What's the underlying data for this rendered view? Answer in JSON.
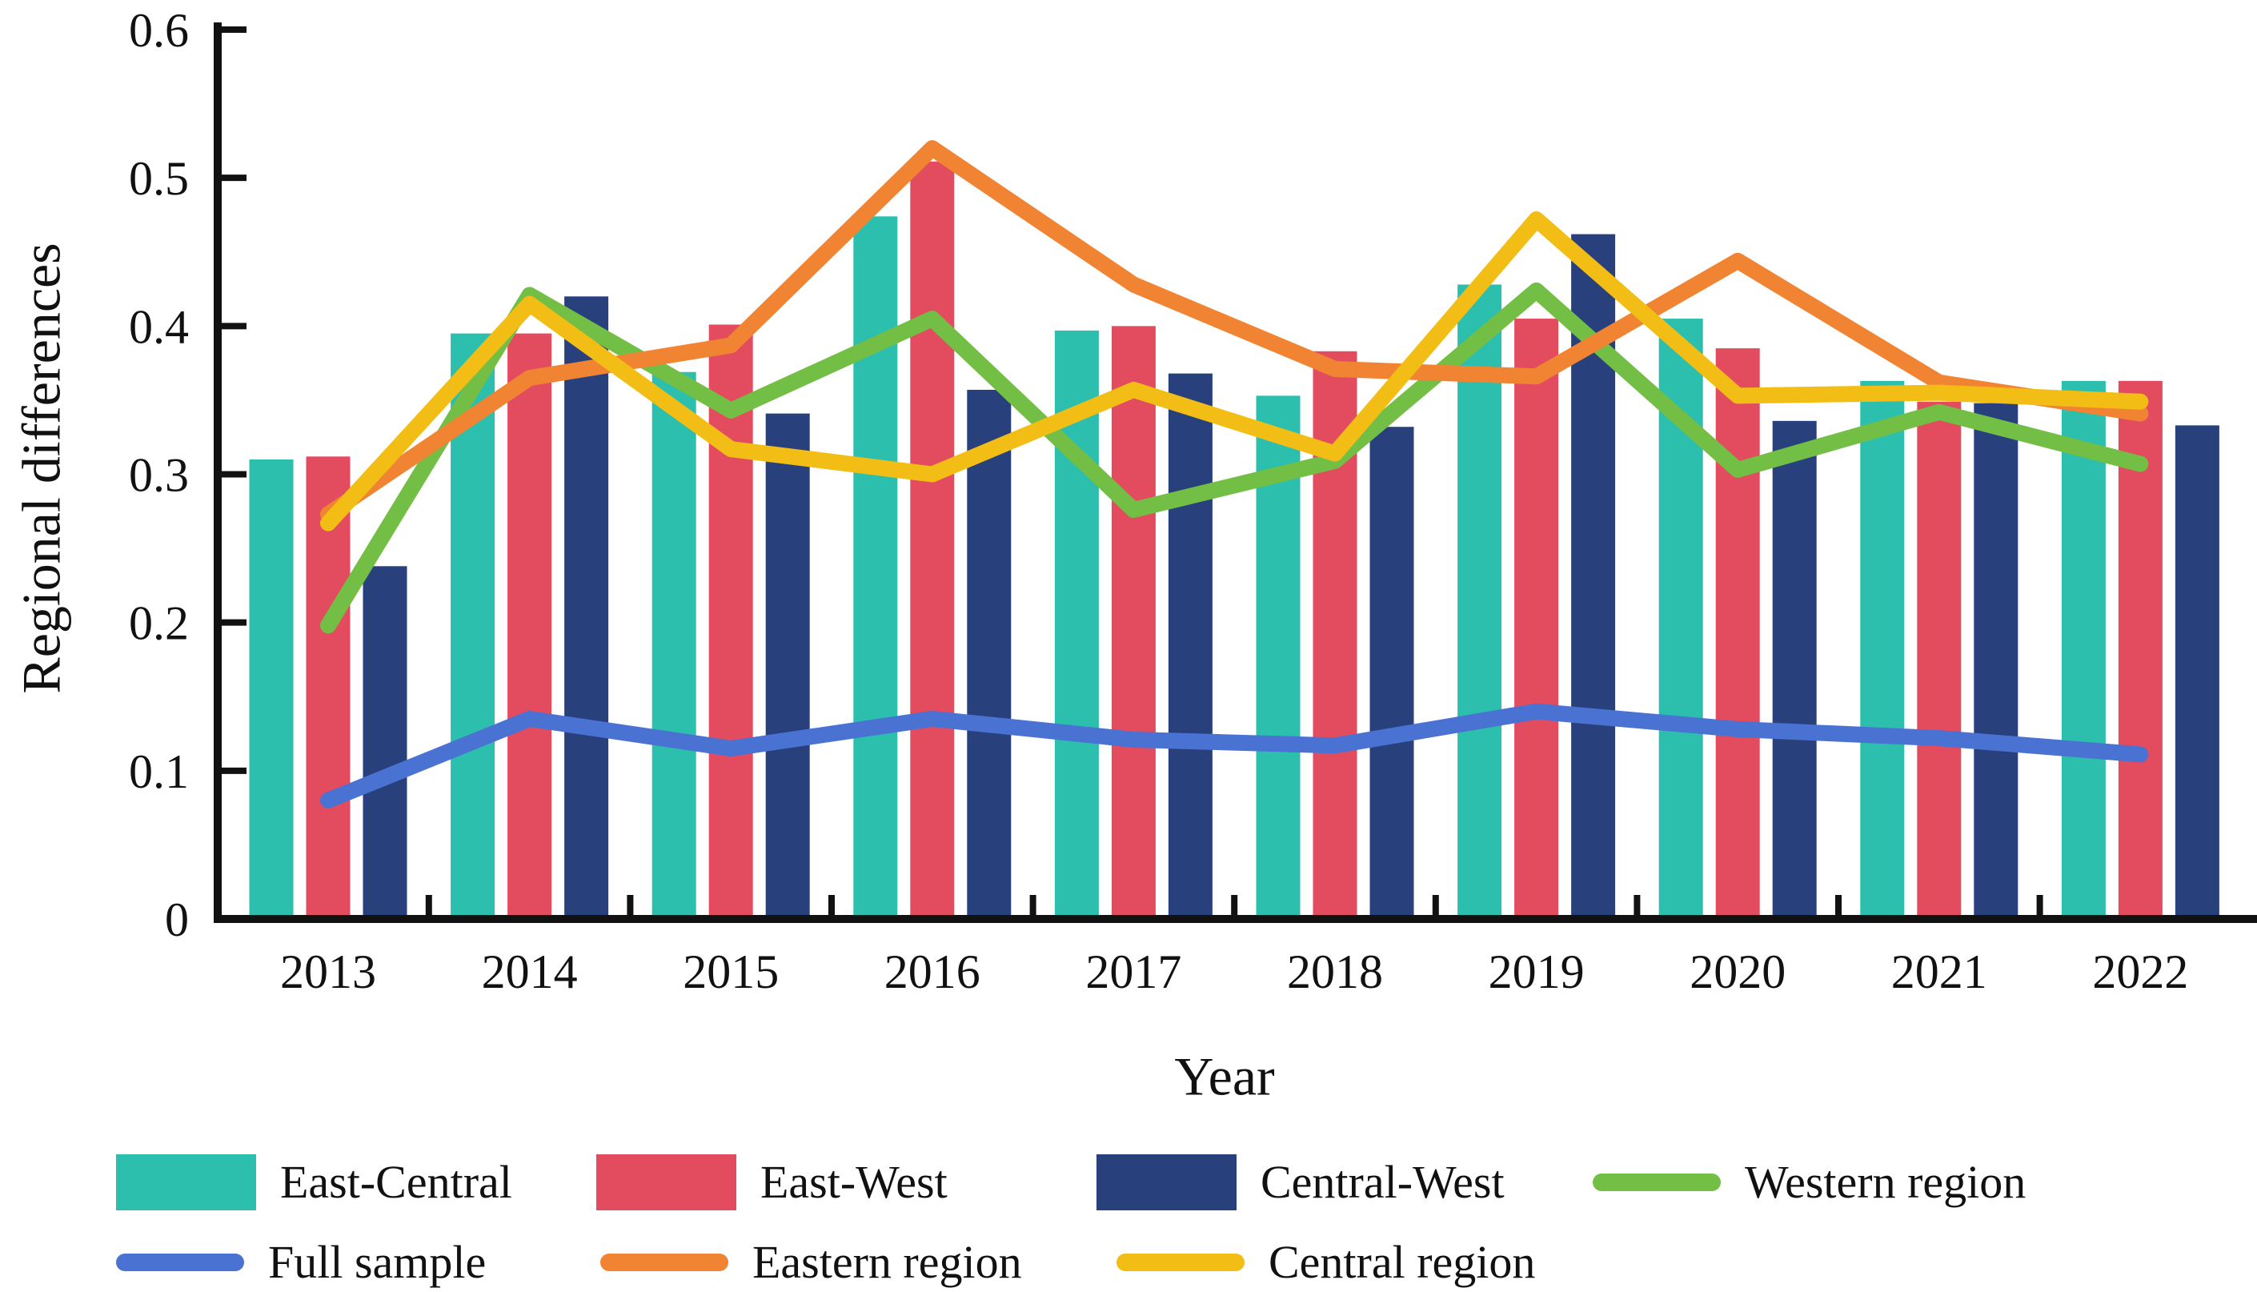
{
  "figure": {
    "background": "#ffffff",
    "text_color": "#111111",
    "axis_color": "#111111"
  },
  "chart_data": {
    "type": "combo_bar_line",
    "title": "",
    "xlabel": "Year",
    "ylabel": "Regional differences",
    "categories": [
      "2013",
      "2014",
      "2015",
      "2016",
      "2017",
      "2018",
      "2019",
      "2020",
      "2021",
      "2022"
    ],
    "ylim": [
      0,
      0.6
    ],
    "yticks": [
      "0",
      "0.1",
      "0.2",
      "0.3",
      "0.4",
      "0.5",
      "0.6"
    ],
    "grid": false,
    "legend_position": "bottom",
    "series": [
      {
        "name": "East-Central",
        "type": "bar",
        "color": "#2cbfae",
        "values": [
          0.31,
          0.395,
          0.369,
          0.474,
          0.397,
          0.353,
          0.428,
          0.405,
          0.363,
          0.363
        ]
      },
      {
        "name": "East-West",
        "type": "bar",
        "color": "#e34b5f",
        "values": [
          0.312,
          0.395,
          0.401,
          0.511,
          0.4,
          0.383,
          0.405,
          0.385,
          0.349,
          0.363
        ]
      },
      {
        "name": "Central-West",
        "type": "bar",
        "color": "#28417d",
        "values": [
          0.238,
          0.42,
          0.341,
          0.357,
          0.368,
          0.332,
          0.462,
          0.336,
          0.348,
          0.333
        ]
      },
      {
        "name": "Western region",
        "type": "line",
        "color": "#73be45",
        "values": [
          0.198,
          0.421,
          0.343,
          0.405,
          0.276,
          0.309,
          0.424,
          0.303,
          0.342,
          0.307
        ]
      },
      {
        "name": "Full sample",
        "type": "line",
        "color": "#4a72d2",
        "values": [
          0.08,
          0.135,
          0.115,
          0.135,
          0.121,
          0.117,
          0.14,
          0.128,
          0.122,
          0.111
        ]
      },
      {
        "name": "Eastern region",
        "type": "line",
        "color": "#f08432",
        "values": [
          0.273,
          0.365,
          0.387,
          0.52,
          0.428,
          0.371,
          0.366,
          0.444,
          0.362,
          0.341
        ]
      },
      {
        "name": "Central region",
        "type": "line",
        "color": "#f2be16",
        "values": [
          0.267,
          0.415,
          0.317,
          0.3,
          0.357,
          0.314,
          0.472,
          0.353,
          0.355,
          0.349
        ]
      }
    ]
  }
}
